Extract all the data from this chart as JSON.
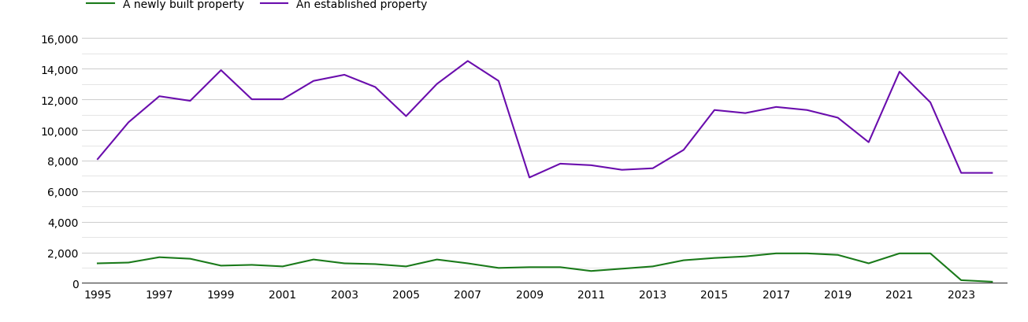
{
  "years": [
    1995,
    1996,
    1997,
    1998,
    1999,
    2000,
    2001,
    2002,
    2003,
    2004,
    2005,
    2006,
    2007,
    2008,
    2009,
    2010,
    2011,
    2012,
    2013,
    2014,
    2015,
    2016,
    2017,
    2018,
    2019,
    2020,
    2021,
    2022,
    2023,
    2024
  ],
  "newly_built": [
    1300,
    1350,
    1700,
    1600,
    1150,
    1200,
    1100,
    1550,
    1300,
    1250,
    1100,
    1550,
    1300,
    1000,
    1050,
    1050,
    800,
    950,
    1100,
    1500,
    1650,
    1750,
    1950,
    1950,
    1850,
    1300,
    1950,
    1950,
    200,
    100
  ],
  "established": [
    8100,
    10500,
    12200,
    11900,
    13900,
    12000,
    12000,
    13200,
    13600,
    12800,
    10900,
    13000,
    14500,
    13200,
    6900,
    7800,
    7700,
    7400,
    7500,
    8700,
    11300,
    11100,
    11500,
    11300,
    10800,
    9200,
    13800,
    11800,
    7200,
    7200
  ],
  "newly_built_color": "#1a7a1a",
  "established_color": "#6a0dad",
  "legend_labels": [
    "A newly built property",
    "An established property"
  ],
  "ylim": [
    0,
    16000
  ],
  "yticks": [
    0,
    2000,
    4000,
    6000,
    8000,
    10000,
    12000,
    14000,
    16000
  ],
  "ytick_labels": [
    "0",
    "2,000",
    "4,000",
    "6,000",
    "8,000",
    "10,000",
    "12,000",
    "14,000",
    "16,000"
  ],
  "minor_yticks": [
    1000,
    3000,
    5000,
    7000,
    9000,
    11000,
    13000,
    15000
  ],
  "background_color": "#ffffff",
  "grid_color": "#d0d0d0",
  "minor_grid_color": "#e0e0e0",
  "line_width": 1.5,
  "legend_fontsize": 10,
  "tick_fontsize": 10,
  "xlim_left": 1994.5,
  "xlim_right": 2024.5
}
